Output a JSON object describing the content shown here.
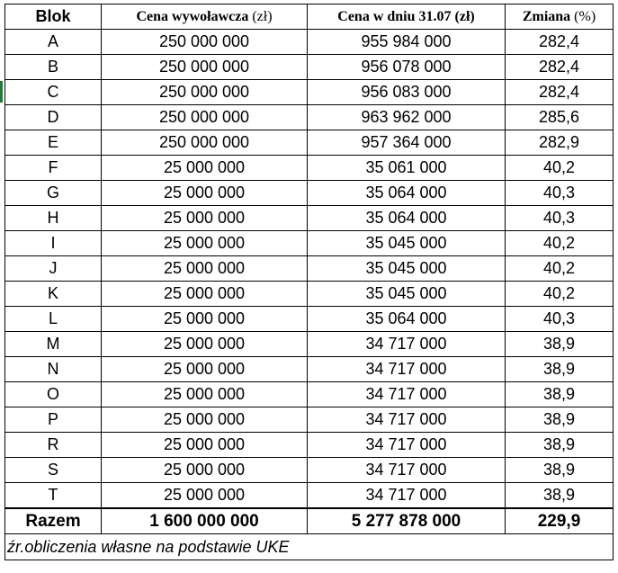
{
  "table": {
    "headers": {
      "blok": "Blok",
      "cena_wyw_main": "Cena wywoławcza",
      "cena_wyw_unit": " (zł)",
      "cena_dnia": "Cena w dniu 31.07 (zł)",
      "zmiana_main": "Zmiana",
      "zmiana_unit": " (%)"
    },
    "rows": [
      {
        "blok": "A",
        "cena_wyw": "250 000 000",
        "cena_dnia": "955 984 000",
        "zmiana": "282,4"
      },
      {
        "blok": "B",
        "cena_wyw": "250 000 000",
        "cena_dnia": "956 078 000",
        "zmiana": "282,4"
      },
      {
        "blok": "C",
        "cena_wyw": "250 000 000",
        "cena_dnia": "956 083 000",
        "zmiana": "282,4"
      },
      {
        "blok": "D",
        "cena_wyw": "250 000 000",
        "cena_dnia": "963 962 000",
        "zmiana": "285,6"
      },
      {
        "blok": "E",
        "cena_wyw": "250 000 000",
        "cena_dnia": "957 364 000",
        "zmiana": "282,9"
      },
      {
        "blok": "F",
        "cena_wyw": "25 000 000",
        "cena_dnia": "35 061 000",
        "zmiana": "40,2"
      },
      {
        "blok": "G",
        "cena_wyw": "25 000 000",
        "cena_dnia": "35 064 000",
        "zmiana": "40,3"
      },
      {
        "blok": "H",
        "cena_wyw": "25 000 000",
        "cena_dnia": "35 064 000",
        "zmiana": "40,3"
      },
      {
        "blok": "I",
        "cena_wyw": "25 000 000",
        "cena_dnia": "35 045 000",
        "zmiana": "40,2"
      },
      {
        "blok": "J",
        "cena_wyw": "25 000 000",
        "cena_dnia": "35 045 000",
        "zmiana": "40,2"
      },
      {
        "blok": "K",
        "cena_wyw": "25 000 000",
        "cena_dnia": "35 045 000",
        "zmiana": "40,2"
      },
      {
        "blok": "L",
        "cena_wyw": "25 000 000",
        "cena_dnia": "35 064 000",
        "zmiana": "40,3"
      },
      {
        "blok": "M",
        "cena_wyw": "25 000 000",
        "cena_dnia": "34 717 000",
        "zmiana": "38,9"
      },
      {
        "blok": "N",
        "cena_wyw": "25 000 000",
        "cena_dnia": "34 717 000",
        "zmiana": "38,9"
      },
      {
        "blok": "O",
        "cena_wyw": "25 000 000",
        "cena_dnia": "34 717 000",
        "zmiana": "38,9"
      },
      {
        "blok": "P",
        "cena_wyw": "25 000 000",
        "cena_dnia": "34 717 000",
        "zmiana": "38,9"
      },
      {
        "blok": "R",
        "cena_wyw": "25 000 000",
        "cena_dnia": "34 717 000",
        "zmiana": "38,9"
      },
      {
        "blok": "S",
        "cena_wyw": "25 000 000",
        "cena_dnia": "34 717 000",
        "zmiana": "38,9"
      },
      {
        "blok": "T",
        "cena_wyw": "25 000 000",
        "cena_dnia": "34 717 000",
        "zmiana": "38,9"
      }
    ],
    "total": {
      "label": "Razem",
      "cena_wyw": "1 600 000 000",
      "cena_dnia": "5 277 878 000",
      "zmiana": "229,9"
    },
    "source": "źr.obliczenia własne na podstawie UKE"
  },
  "colors": {
    "grid": "#000000",
    "row_marker": "#1e7e34"
  }
}
